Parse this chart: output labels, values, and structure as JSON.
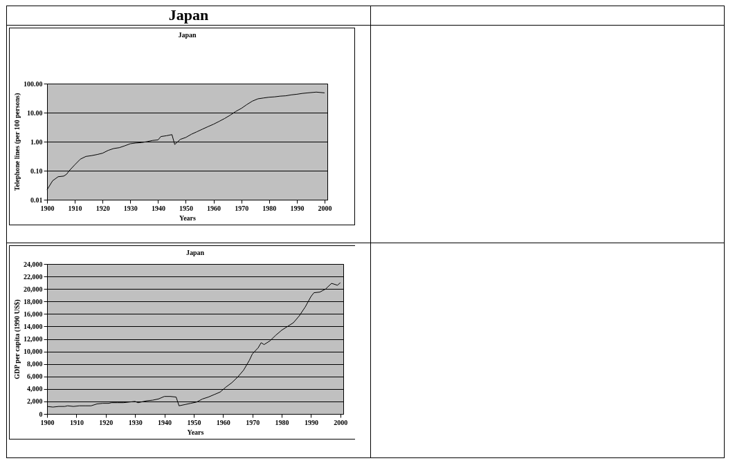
{
  "chart_data": [
    {
      "type": "line",
      "title": "Japan",
      "annotations": [
        "Japan"
      ],
      "xlabel": "Years",
      "ylabel": "Telephone lines (per 100 persons)",
      "log": true,
      "grid": "y",
      "marker": "none",
      "line_style": "solid",
      "color": "#000000",
      "x": [
        1900,
        1902,
        1904,
        1906,
        1907,
        1908,
        1910,
        1912,
        1914,
        1916,
        1918,
        1920,
        1922,
        1924,
        1926,
        1928,
        1930,
        1932,
        1934,
        1936,
        1938,
        1940,
        1941,
        1943,
        1945,
        1946,
        1948,
        1950,
        1952,
        1954,
        1956,
        1958,
        1960,
        1962,
        1964,
        1966,
        1968,
        1970,
        1972,
        1974,
        1976,
        1978,
        1980,
        1982,
        1984,
        1986,
        1988,
        1990,
        1992,
        1994,
        1996,
        1997,
        1998,
        2000
      ],
      "values": [
        0.022,
        0.045,
        0.062,
        0.065,
        0.075,
        0.1,
        0.16,
        0.25,
        0.31,
        0.33,
        0.36,
        0.4,
        0.5,
        0.58,
        0.62,
        0.72,
        0.85,
        0.9,
        0.93,
        1.0,
        1.1,
        1.15,
        1.5,
        1.6,
        1.75,
        0.8,
        1.2,
        1.4,
        1.8,
        2.2,
        2.7,
        3.3,
        4.0,
        5.0,
        6.3,
        8.2,
        11,
        14,
        19,
        25,
        30,
        32,
        34,
        35,
        37,
        38,
        41,
        43,
        46,
        48,
        50,
        51,
        50,
        48
      ],
      "xlim": [
        1900,
        2001
      ],
      "xticks": [
        1900,
        1910,
        1920,
        1930,
        1940,
        1950,
        1960,
        1970,
        1980,
        1990,
        2000
      ],
      "ylim": [
        0.01,
        100
      ],
      "yticks": [
        {
          "value": 0.01,
          "label": "0.01"
        },
        {
          "value": 0.1,
          "label": "0.10"
        },
        {
          "value": 1,
          "label": "1.00"
        },
        {
          "value": 10,
          "label": "10.00"
        },
        {
          "value": 100,
          "label": "100.00"
        }
      ]
    },
    {
      "type": "line",
      "title": "Japan",
      "xlabel": "Years",
      "ylabel": "GDP per capita (1990 US$)",
      "grid": "y",
      "marker": "none",
      "line_style": "solid",
      "color": "#000000",
      "x": [
        1900,
        1902,
        1904,
        1906,
        1907,
        1909,
        1911,
        1913,
        1915,
        1917,
        1919,
        1921,
        1922,
        1924,
        1926,
        1928,
        1930,
        1931,
        1933,
        1934,
        1936,
        1938,
        1940,
        1942,
        1944,
        1945,
        1947,
        1949,
        1951,
        1953,
        1955,
        1957,
        1959,
        1961,
        1963,
        1965,
        1967,
        1969,
        1970,
        1972,
        1973,
        1974,
        1976,
        1978,
        1980,
        1982,
        1984,
        1986,
        1988,
        1990,
        1991,
        1993,
        1995,
        1997,
        1999,
        2000
      ],
      "values": [
        1200,
        1100,
        1200,
        1200,
        1300,
        1200,
        1300,
        1300,
        1300,
        1600,
        1700,
        1700,
        1800,
        1800,
        1800,
        1900,
        2000,
        1800,
        2000,
        2100,
        2200,
        2400,
        2800,
        2800,
        2700,
        1300,
        1500,
        1700,
        1900,
        2400,
        2700,
        3100,
        3500,
        4300,
        5000,
        5900,
        7000,
        8600,
        9600,
        10600,
        11400,
        11100,
        11700,
        12600,
        13400,
        14000,
        14600,
        15700,
        17100,
        18800,
        19400,
        19500,
        20000,
        20900,
        20600,
        21000
      ],
      "xlim": [
        1900,
        2001
      ],
      "xticks": [
        1900,
        1910,
        1920,
        1930,
        1940,
        1950,
        1960,
        1970,
        1980,
        1990,
        2000
      ],
      "ylim": [
        0,
        24000
      ],
      "yticks": [
        0,
        {
          "value": 2000,
          "label": "2,000"
        },
        {
          "value": 4000,
          "label": "4,000"
        },
        {
          "value": 6000,
          "label": "6,000"
        },
        {
          "value": 8000,
          "label": "8,000"
        },
        {
          "value": 10000,
          "label": "10,000"
        },
        {
          "value": 12000,
          "label": "12,000"
        },
        {
          "value": 14000,
          "label": "14,000"
        },
        {
          "value": 16000,
          "label": "16,000"
        },
        {
          "value": 18000,
          "label": "18,000"
        },
        {
          "value": 20000,
          "label": "20,000"
        },
        {
          "value": 22000,
          "label": "22,000"
        },
        {
          "value": 24000,
          "label": "24,000"
        }
      ]
    }
  ]
}
